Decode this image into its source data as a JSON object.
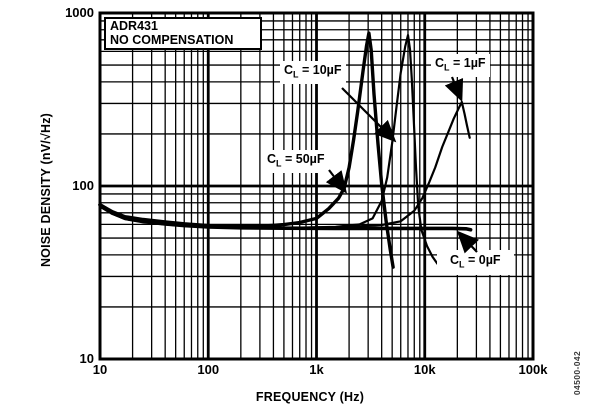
{
  "figure_code": "04500-042",
  "title_box": {
    "line1": "ADR431",
    "line2": "NO COMPENSATION"
  },
  "colors": {
    "ink": "#000000",
    "background": "#ffffff"
  },
  "chart_data": {
    "type": "line",
    "title": "ADR431 NO COMPENSATION — Noise Density vs Frequency",
    "xlabel": "FREQUENCY (Hz)",
    "ylabel": "NOISE DENSITY (nV/√Hz)",
    "x_scale": "log",
    "y_scale": "log",
    "xlim": [
      10,
      100000
    ],
    "ylim": [
      10,
      1000
    ],
    "grid": "full log-log grid, minor and major lines, black on white",
    "legend_position": "inline annotations with arrows",
    "x_ticks": [
      {
        "f": 10,
        "label": "10"
      },
      {
        "f": 100,
        "label": "100"
      },
      {
        "f": 1000,
        "label": "1k"
      },
      {
        "f": 10000,
        "label": "10k"
      },
      {
        "f": 100000,
        "label": "100k"
      }
    ],
    "y_ticks": [
      {
        "v": 1000,
        "label": "1000"
      },
      {
        "v": 100,
        "label": "100"
      },
      {
        "v": 10,
        "label": "10"
      }
    ],
    "series": [
      {
        "id": "cl50",
        "name": "CL = 50µF",
        "stroke_width": 3.4,
        "points": [
          [
            10,
            78
          ],
          [
            13,
            71
          ],
          [
            17,
            66.5
          ],
          [
            25,
            64
          ],
          [
            40,
            62
          ],
          [
            60,
            60.5
          ],
          [
            100,
            59
          ],
          [
            200,
            58.2
          ],
          [
            300,
            58.5
          ],
          [
            500,
            59.8
          ],
          [
            700,
            61.5
          ],
          [
            1000,
            65
          ],
          [
            1300,
            74
          ],
          [
            1600,
            85
          ],
          [
            1800,
            97
          ],
          [
            2000,
            128
          ],
          [
            2200,
            185
          ],
          [
            2400,
            270
          ],
          [
            2700,
            470
          ],
          [
            2900,
            650
          ],
          [
            3050,
            765
          ],
          [
            3200,
            610
          ],
          [
            3400,
            340
          ],
          [
            3700,
            175
          ],
          [
            4000,
            102
          ],
          [
            4400,
            62
          ],
          [
            4800,
            43
          ],
          [
            5100,
            34
          ]
        ]
      },
      {
        "id": "cl10",
        "name": "CL = 10µF",
        "stroke_width": 2.2,
        "points": [
          [
            10,
            76
          ],
          [
            13,
            69
          ],
          [
            17,
            64.5
          ],
          [
            25,
            62
          ],
          [
            40,
            60
          ],
          [
            60,
            58.8
          ],
          [
            100,
            57.8
          ],
          [
            200,
            57.2
          ],
          [
            500,
            57.2
          ],
          [
            1500,
            58
          ],
          [
            2500,
            60
          ],
          [
            3300,
            65
          ],
          [
            4000,
            82
          ],
          [
            4500,
            112
          ],
          [
            5000,
            178
          ],
          [
            5500,
            290
          ],
          [
            6000,
            450
          ],
          [
            6600,
            640
          ],
          [
            7000,
            745
          ],
          [
            7300,
            615
          ],
          [
            7600,
            415
          ],
          [
            7900,
            245
          ],
          [
            8300,
            128
          ],
          [
            8700,
            77
          ],
          [
            9300,
            56
          ],
          [
            10500,
            45
          ],
          [
            11800,
            39
          ],
          [
            13100,
            35.5
          ]
        ]
      },
      {
        "id": "cl1",
        "name": "CL = 1µF",
        "stroke_width": 2.2,
        "points": [
          [
            10,
            76
          ],
          [
            13,
            69
          ],
          [
            17,
            64.5
          ],
          [
            25,
            62
          ],
          [
            40,
            60
          ],
          [
            60,
            58.8
          ],
          [
            100,
            57.8
          ],
          [
            200,
            57.2
          ],
          [
            700,
            57.4
          ],
          [
            2000,
            58
          ],
          [
            4000,
            59.5
          ],
          [
            6000,
            62.5
          ],
          [
            8000,
            72
          ],
          [
            9500,
            85
          ],
          [
            11000,
            105
          ],
          [
            12500,
            128
          ],
          [
            14500,
            168
          ],
          [
            16500,
            205
          ],
          [
            18500,
            245
          ],
          [
            20500,
            280
          ],
          [
            22000,
            306
          ],
          [
            23300,
            262
          ],
          [
            24500,
            225
          ],
          [
            26000,
            190
          ]
        ]
      },
      {
        "id": "cl0",
        "name": "CL = 0µF",
        "stroke_width": 3.6,
        "points": [
          [
            10,
            78
          ],
          [
            13,
            70
          ],
          [
            17,
            65
          ],
          [
            25,
            62.3
          ],
          [
            40,
            60.3
          ],
          [
            60,
            59
          ],
          [
            100,
            58
          ],
          [
            200,
            57.3
          ],
          [
            500,
            57
          ],
          [
            1500,
            56.9
          ],
          [
            4000,
            56.9
          ],
          [
            10000,
            56.9
          ],
          [
            18000,
            56.9
          ],
          [
            24000,
            56.6
          ],
          [
            26500,
            55.8
          ]
        ]
      }
    ],
    "annotations": [
      {
        "id": "cl10",
        "prefix": "C",
        "sub": "L",
        "rest": " = 10µF",
        "box_x": 280,
        "box_y": 61,
        "arrow": [
          342,
          88,
          394,
          140
        ]
      },
      {
        "id": "cl1",
        "prefix": "C",
        "sub": "L",
        "rest": " = 1µF",
        "box_x": 431,
        "box_y": 54,
        "arrow": [
          452,
          77,
          461,
          99
        ]
      },
      {
        "id": "cl50",
        "prefix": "C",
        "sub": "L",
        "rest": " = 50µF",
        "box_x": 263,
        "box_y": 150,
        "arrow": [
          329,
          170,
          345,
          191
        ]
      },
      {
        "id": "cl0",
        "prefix": "C",
        "sub": "L",
        "rest": " = 0µF",
        "box_x": 437,
        "box_y": 250,
        "pad_x": 13,
        "arrow": [
          477,
          252,
          459,
          233
        ]
      }
    ]
  }
}
